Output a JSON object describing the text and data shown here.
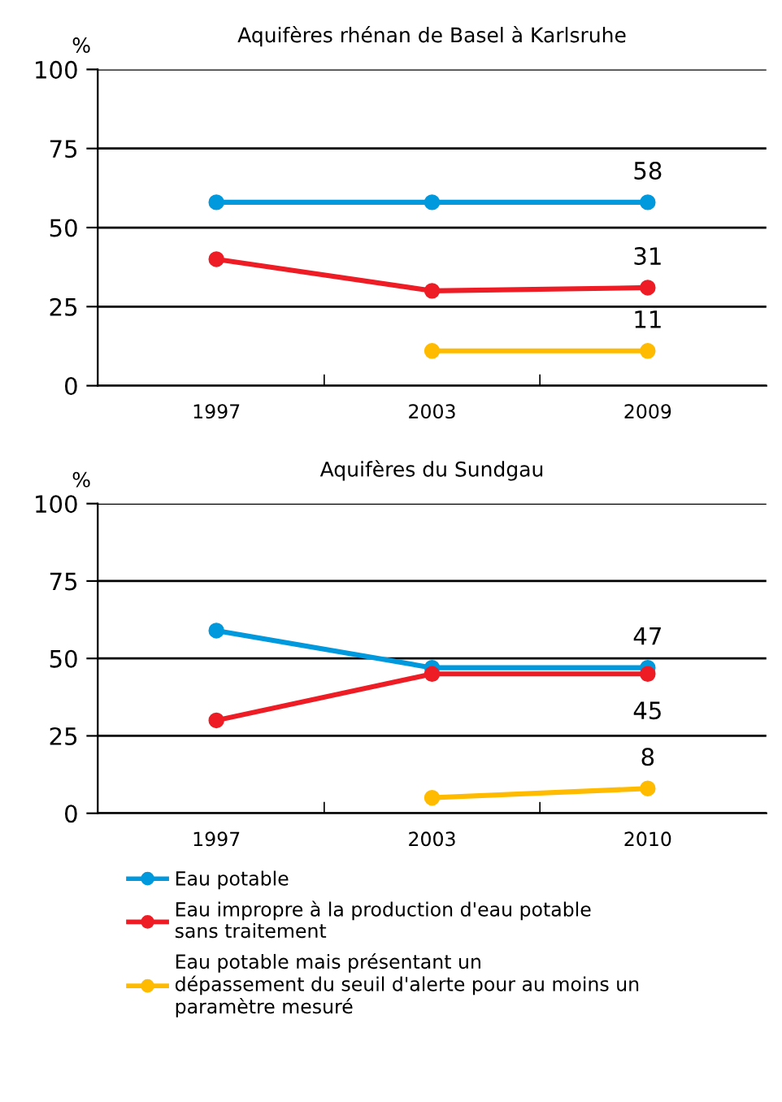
{
  "chart_data": [
    {
      "type": "line",
      "title": "Aquifères rhénan de Basel à Karlsruhe",
      "ylabel": "%",
      "categories": [
        "1997",
        "2003",
        "2009"
      ],
      "ylim": [
        0,
        100
      ],
      "yticks": [
        0,
        25,
        50,
        75,
        100
      ],
      "grid": "y",
      "marker": "circle",
      "line_style": "solid",
      "legend": false,
      "series": [
        {
          "color": "#0099dd",
          "values": [
            58,
            58,
            58
          ],
          "value_labels": [
            null,
            null,
            "58"
          ]
        },
        {
          "color": "#ee1c25",
          "values": [
            40,
            30,
            31
          ],
          "value_labels": [
            null,
            null,
            "31"
          ]
        },
        {
          "color": "#ffbb00",
          "values": [
            null,
            11,
            11
          ],
          "value_labels": [
            null,
            null,
            "11"
          ]
        }
      ]
    },
    {
      "type": "line",
      "title": "Aquifères du Sundgau",
      "ylabel": "%",
      "categories": [
        "1997",
        "2003",
        "2010"
      ],
      "ylim": [
        0,
        100
      ],
      "yticks": [
        0,
        25,
        50,
        75,
        100
      ],
      "grid": "y",
      "marker": "circle",
      "line_style": "solid",
      "legend": "bottom",
      "series": [
        {
          "name": "Eau potable",
          "color": "#0099dd",
          "values": [
            59,
            47,
            47
          ],
          "value_labels": [
            null,
            null,
            "47"
          ]
        },
        {
          "name": "Eau impropre à la production d'eau potable\nsans traitement",
          "color": "#ee1c25",
          "values": [
            30,
            45,
            45
          ],
          "value_labels": [
            null,
            null,
            "45"
          ]
        },
        {
          "name": "Eau potable mais présentant un\ndépassement du seuil d'alerte pour au moins un\nparamètre mesuré",
          "color": "#ffbb00",
          "values": [
            null,
            5,
            8
          ],
          "value_labels": [
            null,
            null,
            "8"
          ]
        }
      ]
    }
  ]
}
